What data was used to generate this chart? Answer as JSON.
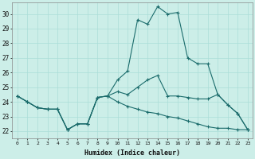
{
  "xlabel": "Humidex (Indice chaleur)",
  "ylabel": "",
  "bg_color": "#cceee8",
  "line_color": "#1a6b6b",
  "grid_color": "#aaddd8",
  "xlim": [
    -0.5,
    23.5
  ],
  "ylim": [
    21.5,
    30.8
  ],
  "xticks": [
    0,
    1,
    2,
    3,
    4,
    5,
    6,
    7,
    8,
    9,
    10,
    11,
    12,
    13,
    14,
    15,
    16,
    17,
    18,
    19,
    20,
    21,
    22,
    23
  ],
  "yticks": [
    22,
    23,
    24,
    25,
    26,
    27,
    28,
    29,
    30
  ],
  "lines": [
    {
      "x": [
        0,
        1,
        2,
        3,
        4,
        5,
        6,
        7,
        8,
        9,
        10,
        11,
        12,
        13,
        14,
        15,
        16,
        17,
        18,
        19,
        20,
        21,
        22,
        23
      ],
      "y": [
        24.4,
        24.0,
        23.6,
        23.5,
        23.5,
        22.1,
        22.5,
        22.5,
        24.3,
        24.4,
        25.5,
        26.1,
        29.6,
        29.3,
        30.5,
        30.0,
        30.1,
        27.0,
        26.6,
        26.6,
        24.5,
        23.8,
        23.2,
        22.1
      ]
    },
    {
      "x": [
        0,
        1,
        2,
        3,
        4,
        5,
        6,
        7,
        8,
        9,
        10,
        11,
        12,
        13,
        14,
        15,
        16,
        17,
        18,
        19,
        20,
        21,
        22,
        23
      ],
      "y": [
        24.4,
        24.0,
        23.6,
        23.5,
        23.5,
        22.1,
        22.5,
        22.5,
        24.3,
        24.4,
        24.7,
        24.5,
        25.0,
        25.5,
        25.8,
        24.4,
        24.4,
        24.3,
        24.2,
        24.2,
        24.5,
        23.8,
        23.2,
        22.1
      ]
    },
    {
      "x": [
        0,
        1,
        2,
        3,
        4,
        5,
        6,
        7,
        8,
        9,
        10,
        11,
        12,
        13,
        14,
        15,
        16,
        17,
        18,
        19,
        20,
        21,
        22,
        23
      ],
      "y": [
        24.4,
        24.0,
        23.6,
        23.5,
        23.5,
        22.1,
        22.5,
        22.5,
        24.3,
        24.4,
        24.0,
        23.7,
        23.5,
        23.3,
        23.2,
        23.0,
        22.9,
        22.7,
        22.5,
        22.3,
        22.2,
        22.2,
        22.1,
        22.1
      ]
    }
  ]
}
